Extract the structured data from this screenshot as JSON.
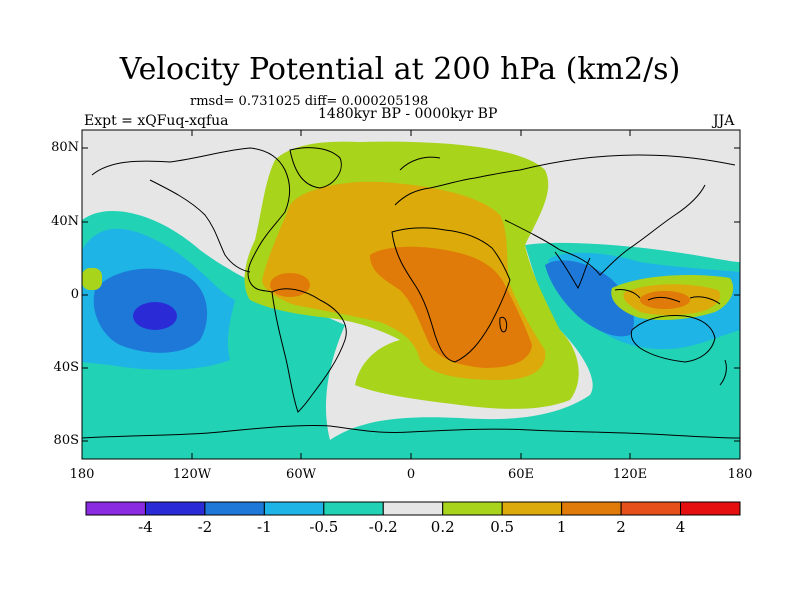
{
  "title": "Velocity Potential at 200 hPa (km2/s)",
  "stats_line": "rmsd= 0.731025 diff= 0.000205198",
  "left_label": "Expt = xQFuq-xqfua",
  "center_label": "1480kyr BP - 0000kyr BP",
  "right_label": "JJA",
  "y_axis": {
    "ticks": [
      {
        "label": "80N"
      },
      {
        "label": "40N"
      },
      {
        "label": "0"
      },
      {
        "label": "40S"
      },
      {
        "label": "80S"
      }
    ]
  },
  "x_axis": {
    "ticks": [
      {
        "label": "180"
      },
      {
        "label": "120W"
      },
      {
        "label": "60W"
      },
      {
        "label": "0"
      },
      {
        "label": "60E"
      },
      {
        "label": "120E"
      },
      {
        "label": "180"
      }
    ]
  },
  "colorbar": {
    "colors": [
      "#8a2be2",
      "#2a2ad6",
      "#1e78d8",
      "#1fb4e6",
      "#22d2b4",
      "#e6e6e6",
      "#a8d41c",
      "#dcaa0a",
      "#e07a08",
      "#e6501a",
      "#e60f0f"
    ],
    "labels": [
      "-4",
      "-2",
      "-1",
      "-0.5",
      "-0.2",
      "0.2",
      "0.5",
      "1",
      "2",
      "4"
    ]
  }
}
